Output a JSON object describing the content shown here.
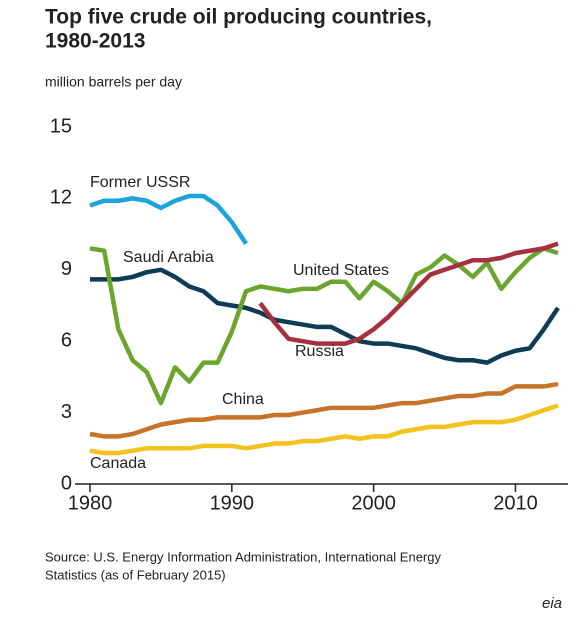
{
  "chart_data": {
    "type": "line",
    "title": "Top five crude oil producing countries,",
    "subtitle": "1980-2013",
    "y_label": "million barrels per day",
    "source": "Source: U.S. Energy Information Administration, International Energy",
    "source_line2": "Statistics (as of February 2015)",
    "logo": "eia",
    "x": [
      1980,
      1981,
      1982,
      1983,
      1984,
      1985,
      1986,
      1987,
      1988,
      1989,
      1990,
      1991,
      1992,
      1993,
      1994,
      1995,
      1996,
      1997,
      1998,
      1999,
      2000,
      2001,
      2002,
      2003,
      2004,
      2005,
      2006,
      2007,
      2008,
      2009,
      2010,
      2011,
      2012,
      2013
    ],
    "xlim": [
      1980,
      2013
    ],
    "xticks": [
      1980,
      1990,
      2000,
      2010
    ],
    "ylim": [
      0,
      15
    ],
    "yticks": [
      0,
      3,
      6,
      9,
      12,
      15
    ],
    "grid": false,
    "series": [
      {
        "name": "Former USSR",
        "color": "#1ba3dc",
        "values": [
          11.7,
          11.9,
          11.9,
          12.0,
          11.9,
          11.6,
          11.9,
          12.1,
          12.1,
          11.7,
          11.0,
          10.1,
          null,
          null,
          null,
          null,
          null,
          null,
          null,
          null,
          null,
          null,
          null,
          null,
          null,
          null,
          null,
          null,
          null,
          null,
          null,
          null,
          null,
          null
        ]
      },
      {
        "name": "Saudi Arabia",
        "color": "#0e3c55",
        "values": [
          8.6,
          8.6,
          8.6,
          8.7,
          8.9,
          9.0,
          8.7,
          8.3,
          8.1,
          7.6,
          7.5,
          7.4,
          7.2,
          6.9,
          6.8,
          6.7,
          6.6,
          6.6,
          6.3,
          6.0,
          5.9,
          5.9,
          5.8,
          5.7,
          5.5,
          5.3,
          5.2,
          5.2,
          5.1,
          5.4,
          5.6,
          5.7,
          6.5,
          7.4
        ]
      },
      {
        "name": "United States",
        "color": "#6aa62e",
        "values": [
          9.9,
          9.8,
          6.5,
          5.2,
          4.7,
          3.4,
          4.9,
          4.3,
          5.1,
          5.1,
          6.4,
          8.1,
          8.3,
          8.2,
          8.1,
          8.2,
          8.2,
          8.5,
          8.5,
          7.8,
          8.5,
          8.1,
          7.6,
          8.8,
          9.1,
          9.6,
          9.2,
          8.7,
          9.3,
          8.2,
          8.9,
          9.5,
          9.9,
          9.7
        ]
      },
      {
        "name": "Russia",
        "color": "#a5313f",
        "values": [
          null,
          null,
          null,
          null,
          null,
          null,
          null,
          null,
          null,
          null,
          null,
          null,
          7.6,
          6.8,
          6.1,
          6.0,
          5.9,
          5.9,
          5.9,
          6.1,
          6.5,
          7.0,
          7.6,
          8.2,
          8.8,
          9.0,
          9.2,
          9.4,
          9.4,
          9.5,
          9.7,
          9.8,
          9.9,
          10.1
        ]
      },
      {
        "name": "China",
        "color": "#c6742a",
        "values": [
          2.1,
          2.0,
          2.0,
          2.1,
          2.3,
          2.5,
          2.6,
          2.7,
          2.7,
          2.8,
          2.8,
          2.8,
          2.8,
          2.9,
          2.9,
          3.0,
          3.1,
          3.2,
          3.2,
          3.2,
          3.2,
          3.3,
          3.4,
          3.4,
          3.5,
          3.6,
          3.7,
          3.7,
          3.8,
          3.8,
          4.1,
          4.1,
          4.1,
          4.2
        ]
      },
      {
        "name": "Canada",
        "color": "#f3c21b",
        "values": [
          1.4,
          1.3,
          1.3,
          1.4,
          1.5,
          1.5,
          1.5,
          1.5,
          1.6,
          1.6,
          1.6,
          1.5,
          1.6,
          1.7,
          1.7,
          1.8,
          1.8,
          1.9,
          2.0,
          1.9,
          2.0,
          2.0,
          2.2,
          2.3,
          2.4,
          2.4,
          2.5,
          2.6,
          2.6,
          2.6,
          2.7,
          2.9,
          3.1,
          3.3
        ]
      }
    ]
  }
}
